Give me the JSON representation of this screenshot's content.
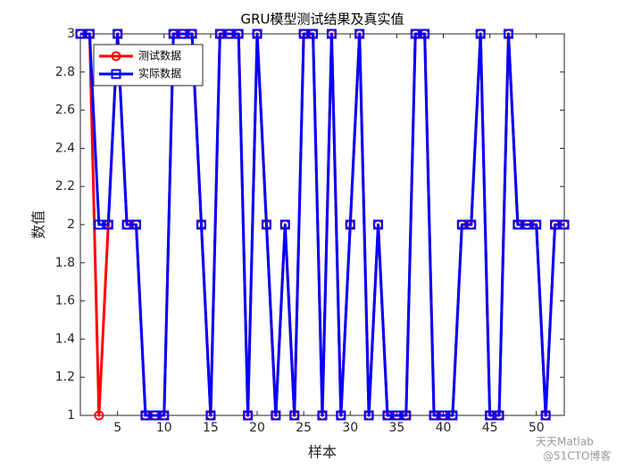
{
  "chart_data": {
    "type": "line",
    "title": "GRU模型测试结果及真实值",
    "x_label": "样本",
    "y_label": "数值",
    "x": [
      1,
      2,
      3,
      4,
      5,
      6,
      7,
      8,
      9,
      10,
      11,
      12,
      13,
      14,
      15,
      16,
      17,
      18,
      19,
      20,
      21,
      22,
      23,
      24,
      25,
      26,
      27,
      28,
      29,
      30,
      31,
      32,
      33,
      34,
      35,
      36,
      37,
      38,
      39,
      40,
      41,
      42,
      43,
      44,
      45,
      46,
      47,
      48,
      49,
      50,
      51,
      52,
      53
    ],
    "series": [
      {
        "name": "测试数据",
        "color": "#ff0000",
        "marker": "circle",
        "values": [
          3,
          3,
          1,
          2,
          3,
          2,
          2,
          1,
          1,
          1,
          3,
          3,
          3,
          2,
          1,
          3,
          3,
          3,
          1,
          3,
          2,
          1,
          2,
          1,
          3,
          3,
          1,
          3,
          1,
          2,
          3,
          1,
          2,
          1,
          1,
          1,
          3,
          3,
          1,
          1,
          1,
          2,
          2,
          3,
          1,
          1,
          3,
          2,
          2,
          2,
          1,
          2,
          2
        ]
      },
      {
        "name": "实际数据",
        "color": "#0000ff",
        "marker": "square",
        "values": [
          3,
          3,
          2,
          2,
          3,
          2,
          2,
          1,
          1,
          1,
          3,
          3,
          3,
          2,
          1,
          3,
          3,
          3,
          1,
          3,
          2,
          1,
          2,
          1,
          3,
          3,
          1,
          3,
          1,
          2,
          3,
          1,
          2,
          1,
          1,
          1,
          3,
          3,
          1,
          1,
          1,
          2,
          2,
          3,
          1,
          1,
          3,
          2,
          2,
          2,
          1,
          2,
          2
        ]
      }
    ],
    "xlim": [
      1,
      53
    ],
    "ylim": [
      1,
      3
    ],
    "xticks": [
      5,
      10,
      15,
      20,
      25,
      30,
      35,
      40,
      45,
      50
    ],
    "yticks": [
      1,
      1.2,
      1.4,
      1.6,
      1.8,
      2,
      2.2,
      2.4,
      2.6,
      2.8,
      3
    ],
    "legend": "upper left",
    "watermark": [
      "天天Matlab",
      "@51CTO博客"
    ]
  }
}
